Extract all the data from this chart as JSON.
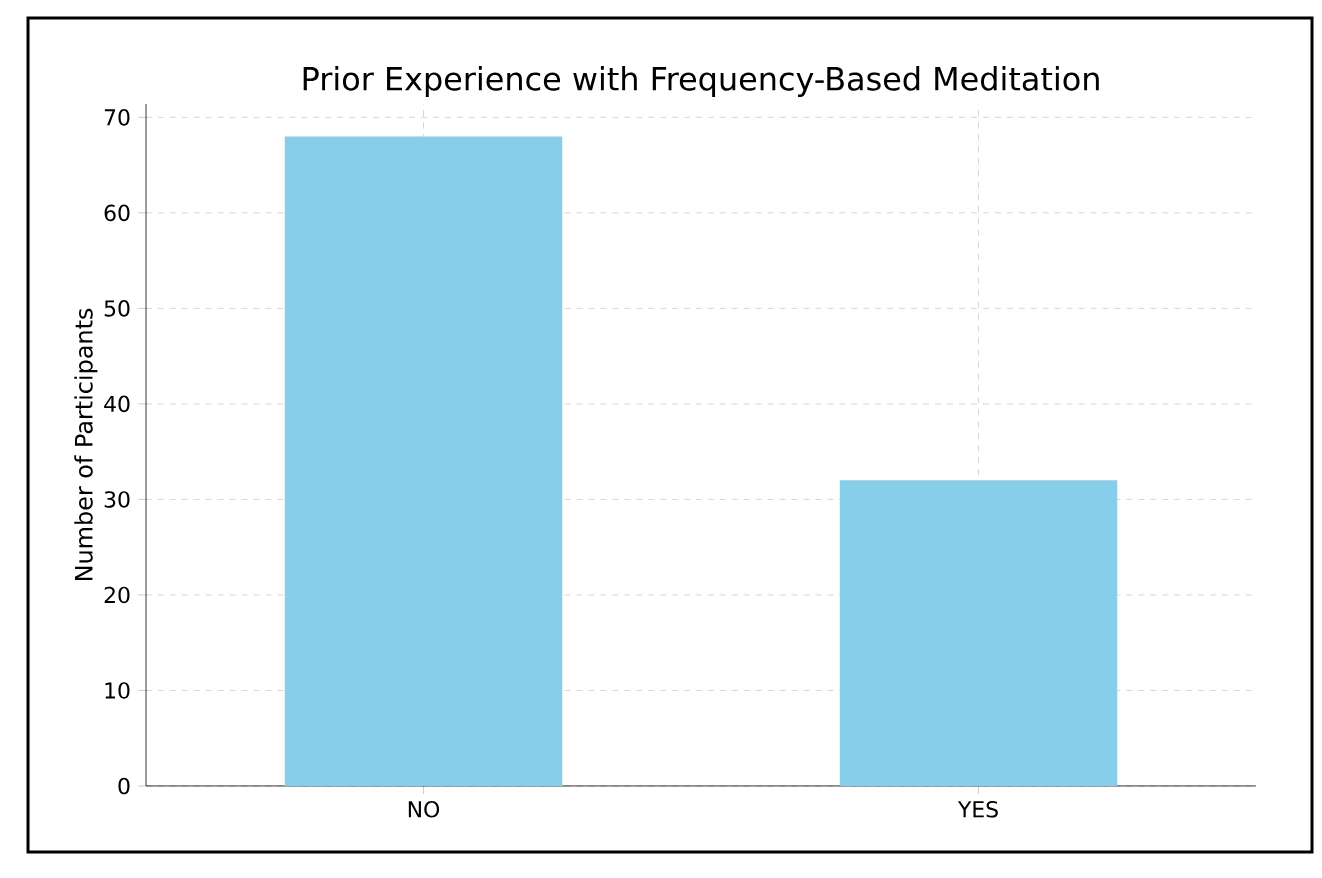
{
  "chart_data": {
    "type": "bar",
    "title": "Prior Experience with Frequency-Based Meditation",
    "ylabel": "Number of Participants",
    "categories": [
      "NO",
      "YES"
    ],
    "values": [
      68,
      32
    ],
    "color": "#87ceeb",
    "ylim": [
      0,
      71.4
    ],
    "yticks": [
      0,
      10,
      20,
      30,
      40,
      50,
      60,
      70
    ],
    "grid": true
  }
}
